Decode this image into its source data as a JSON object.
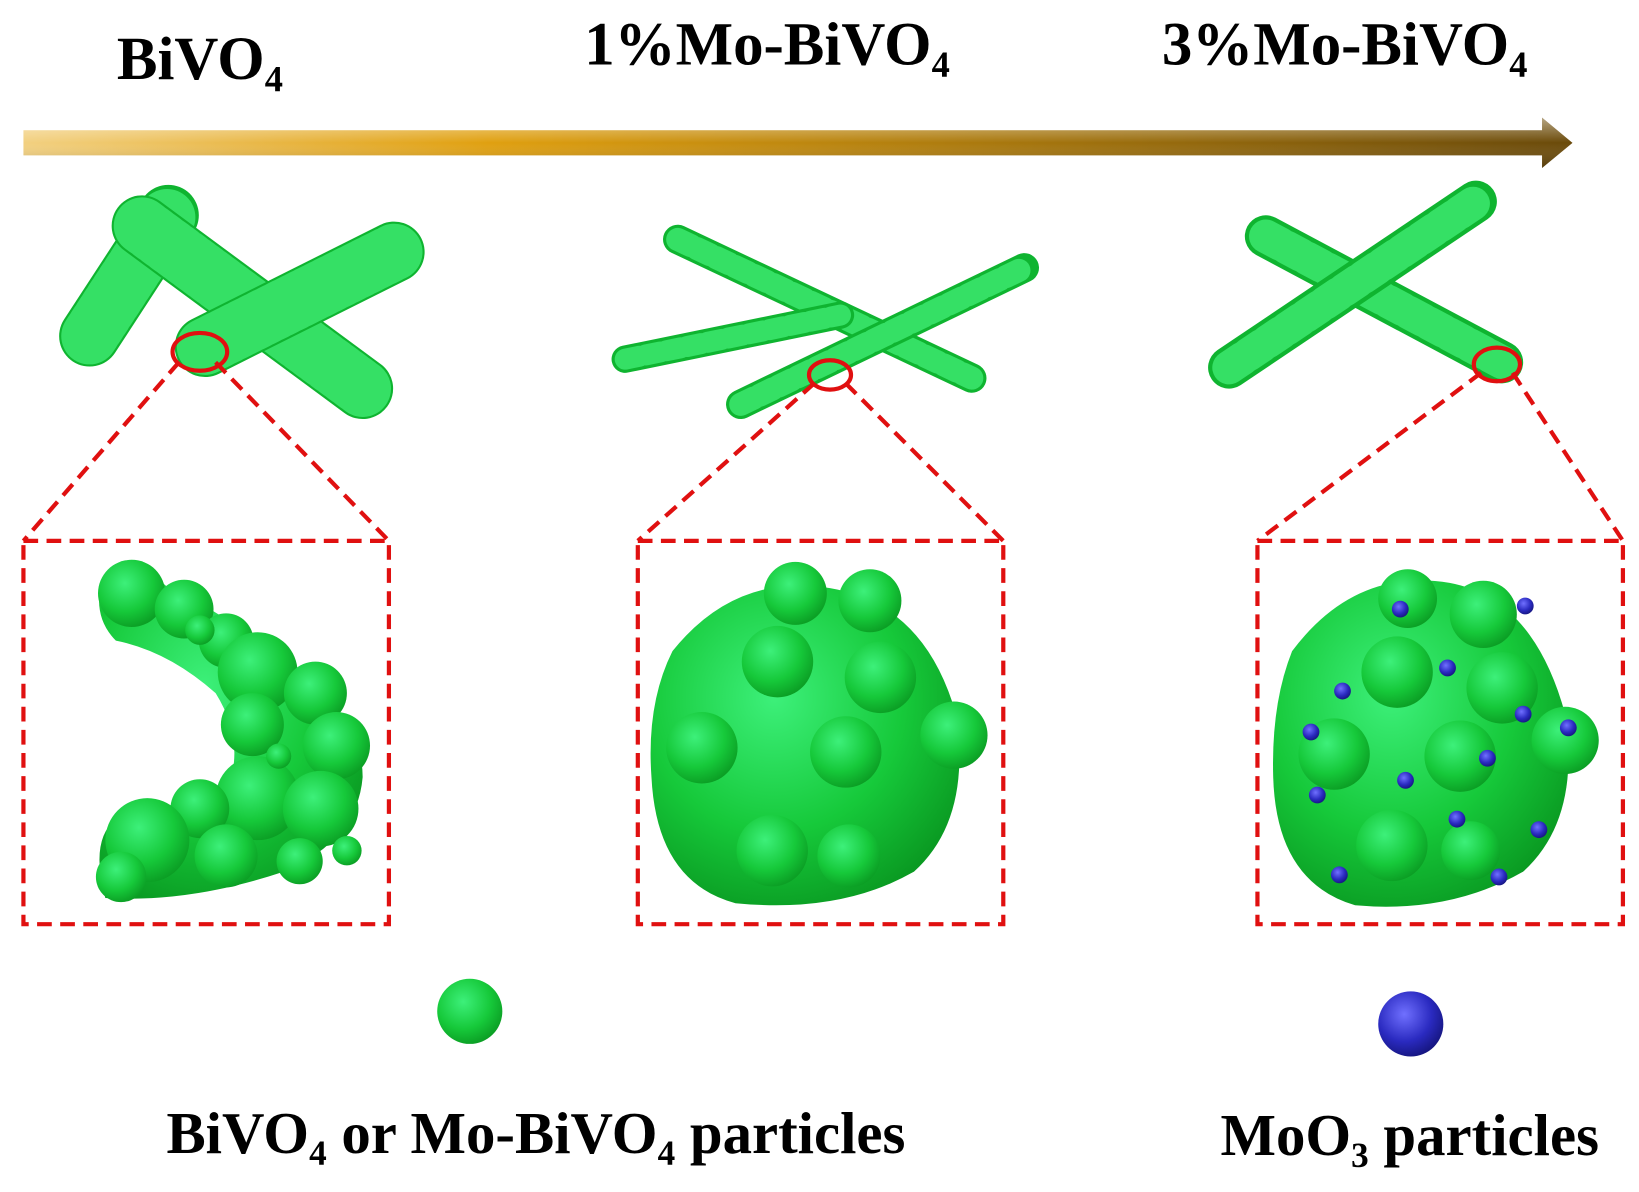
{
  "stages": [
    {
      "label": "BiVO₄"
    },
    {
      "label": "1%Mo-BiVO₄"
    },
    {
      "label": "3%Mo-BiVO₄"
    }
  ],
  "legend": [
    {
      "label": "BiVO₄ or Mo-BiVO₄ particles"
    },
    {
      "label": "MoO₃ particles"
    }
  ]
}
